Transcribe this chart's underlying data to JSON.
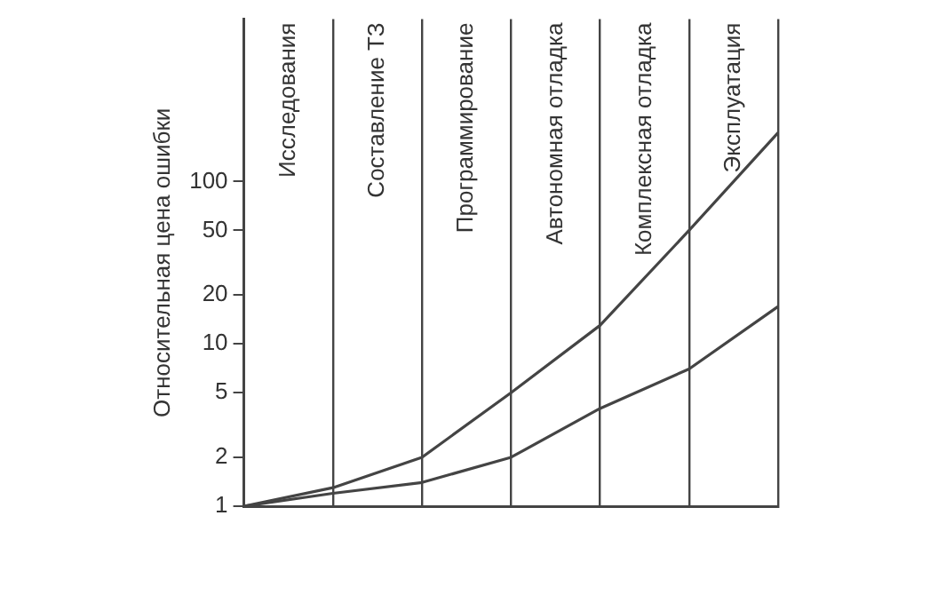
{
  "chart_data": {
    "type": "line",
    "ylabel": "Относительная цена ошибки",
    "categories": [
      null,
      null,
      null,
      null,
      null,
      null,
      null
    ],
    "ylim": [
      1,
      1000
    ],
    "yticks": [
      1,
      2,
      5,
      10,
      20,
      50,
      100
    ],
    "log": "y",
    "tick_labels": "y",
    "grid": "x",
    "legend": false,
    "marker": "none",
    "series": [
      {
        "color": "#444444",
        "values": [
          1,
          1.3,
          2,
          5,
          13,
          50,
          200
        ]
      },
      {
        "color": "#444444",
        "values": [
          1,
          1.2,
          1.4,
          2,
          4,
          7,
          17
        ]
      }
    ],
    "annotations": [
      "Исследования",
      "Составление ТЗ",
      "Программирование",
      "Автономная отладка",
      "Комплексная отладка",
      "Эксплуатация"
    ]
  }
}
